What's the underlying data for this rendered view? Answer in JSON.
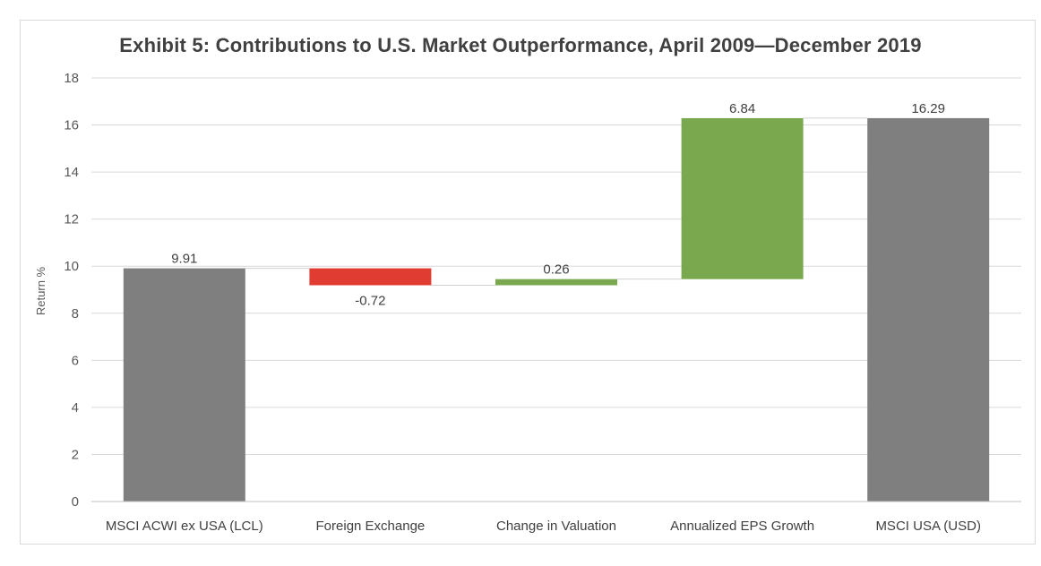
{
  "chart_data": {
    "type": "bar",
    "subtype": "waterfall",
    "title": "Exhibit 5: Contributions to U.S. Market Outperformance, April 2009—December 2019",
    "xlabel": "",
    "ylabel": "Return %",
    "ylim": [
      0,
      18
    ],
    "yticks": [
      "0",
      "2",
      "4",
      "6",
      "8",
      "10",
      "12",
      "14",
      "16",
      "18"
    ],
    "grid": true,
    "legend": "none",
    "categories": [
      "MSCI ACWI ex USA (LCL)",
      "Foreign Exchange",
      "Change in Valuation",
      "Annualized EPS Growth",
      "MSCI USA (USD)"
    ],
    "values": [
      9.91,
      -0.72,
      0.26,
      6.84,
      16.29
    ],
    "labels": [
      "9.91",
      "-0.72",
      "0.26",
      "6.84",
      "16.29"
    ],
    "kinds": [
      "total",
      "delta",
      "delta",
      "delta",
      "total"
    ],
    "colors": {
      "total": "#7f7f7f",
      "negative": "#e03c31",
      "positive": "#7aa84f",
      "grid": "#d9d9d9",
      "connector": "#d0d0d0"
    }
  }
}
